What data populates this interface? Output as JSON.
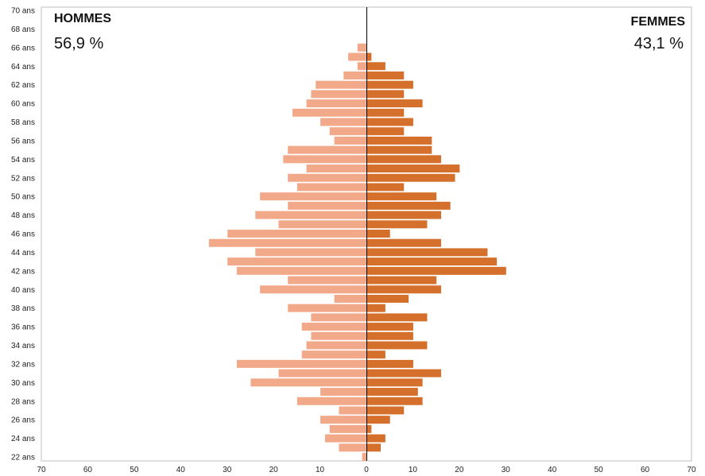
{
  "chart_data": {
    "type": "bar",
    "orientation": "horizontal-pyramid",
    "legend": {
      "hommes_label": "HOMMES",
      "hommes_pct": "56,9 %",
      "femmes_label": "FEMMES",
      "femmes_pct": "43,1 %"
    },
    "colors": {
      "hommes": "#f2a98a",
      "femmes": "#d4702c",
      "axis": "#000000",
      "frame": "#bfbfbf"
    },
    "y_ticks": [
      "70 ans",
      "68 ans",
      "66 ans",
      "64 ans",
      "62 ans",
      "60 ans",
      "58 ans",
      "56 ans",
      "54 ans",
      "52 ans",
      "50 ans",
      "48 ans",
      "46 ans",
      "44 ans",
      "42 ans",
      "40 ans",
      "38 ans",
      "36 ans",
      "34 ans",
      "32 ans",
      "30 ans",
      "28 ans",
      "26 ans",
      "24 ans",
      "22 ans"
    ],
    "x_ticks": [
      "70",
      "60",
      "50",
      "40",
      "30",
      "20",
      "10",
      "0",
      "10",
      "20",
      "30",
      "40",
      "50",
      "60",
      "70"
    ],
    "xlim": [
      -70,
      70
    ],
    "ages": [
      66,
      65,
      64,
      63,
      62,
      61,
      60,
      59,
      58,
      57,
      56,
      55,
      54,
      53,
      52,
      51,
      50,
      49,
      48,
      47,
      46,
      45,
      44,
      43,
      42,
      41,
      40,
      39,
      38,
      37,
      36,
      35,
      34,
      33,
      32,
      31,
      30,
      29,
      28,
      27,
      26,
      25,
      24,
      23,
      22
    ],
    "series": [
      {
        "name": "HOMMES",
        "values": [
          2,
          4,
          2,
          5,
          11,
          12,
          13,
          16,
          10,
          8,
          7,
          17,
          18,
          13,
          17,
          15,
          23,
          17,
          24,
          19,
          30,
          34,
          24,
          30,
          28,
          17,
          23,
          7,
          17,
          12,
          14,
          12,
          13,
          14,
          28,
          19,
          25,
          10,
          15,
          6,
          10,
          8,
          9,
          6,
          1
        ]
      },
      {
        "name": "FEMMES",
        "values": [
          0,
          1,
          4,
          8,
          10,
          8,
          12,
          8,
          10,
          8,
          14,
          14,
          16,
          20,
          19,
          8,
          15,
          18,
          16,
          13,
          5,
          16,
          26,
          28,
          30,
          15,
          16,
          9,
          4,
          13,
          10,
          10,
          13,
          4,
          10,
          16,
          12,
          11,
          12,
          8,
          5,
          1,
          4,
          3,
          0
        ]
      }
    ]
  }
}
